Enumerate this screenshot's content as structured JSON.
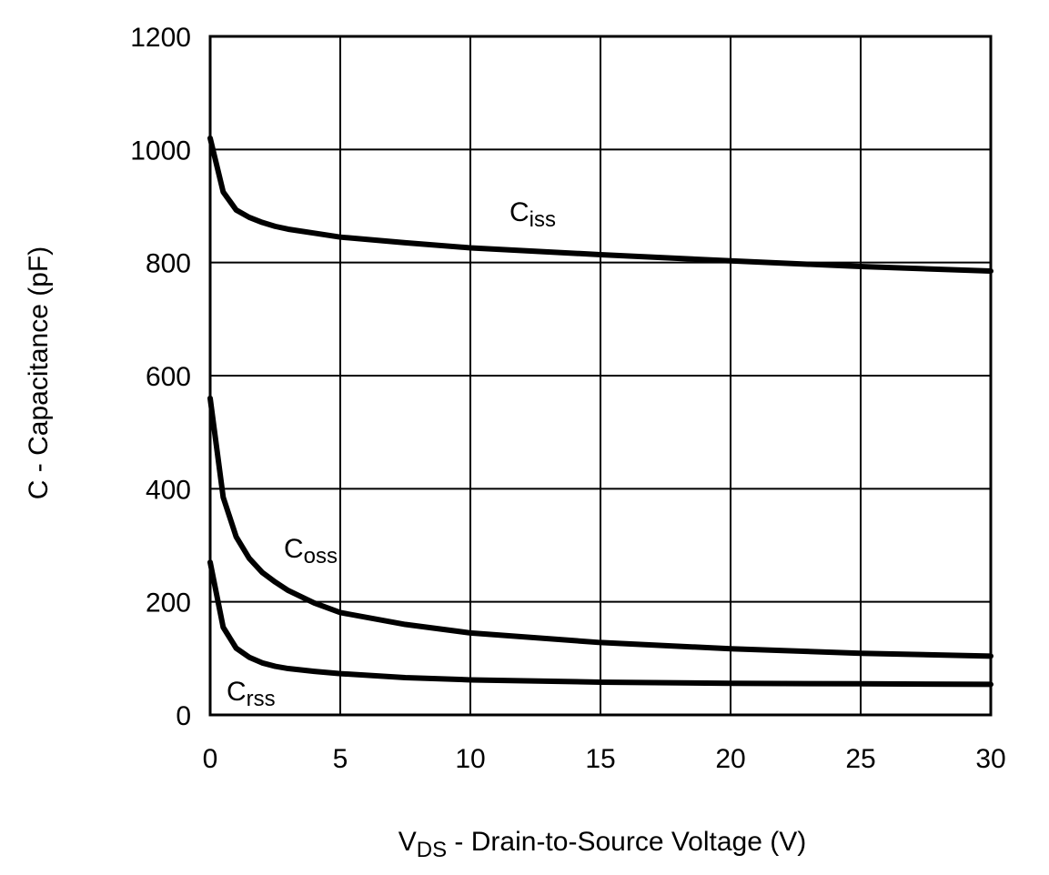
{
  "chart_data": {
    "type": "line",
    "title": "",
    "xlabel_main": "V",
    "xlabel_sub": "DS",
    "xlabel_rest": " - Drain-to-Source Voltage (V)",
    "ylabel": "C - Capacitance (pF)",
    "xlim": [
      0,
      30
    ],
    "ylim": [
      0,
      1200
    ],
    "xticks": [
      "0",
      "5",
      "10",
      "15",
      "20",
      "25",
      "30"
    ],
    "yticks": [
      "0",
      "200",
      "400",
      "600",
      "800",
      "1000",
      "1200"
    ],
    "grid": true,
    "legend": "none",
    "series": [
      {
        "name_main": "C",
        "name_sub": "iss",
        "x": [
          0,
          0.5,
          1,
          1.5,
          2,
          2.5,
          3,
          4,
          5,
          7.5,
          10,
          15,
          20,
          25,
          30
        ],
        "values": [
          1020,
          925,
          893,
          880,
          871,
          864,
          859,
          852,
          845,
          835,
          826,
          814,
          803,
          793,
          785
        ]
      },
      {
        "name_main": "C",
        "name_sub": "oss",
        "x": [
          0,
          0.5,
          1,
          1.5,
          2,
          2.5,
          3,
          4,
          5,
          7.5,
          10,
          15,
          20,
          25,
          30
        ],
        "values": [
          560,
          385,
          315,
          277,
          252,
          235,
          220,
          198,
          181,
          160,
          145,
          128,
          117,
          109,
          104
        ]
      },
      {
        "name_main": "C",
        "name_sub": "rss",
        "x": [
          0,
          0.5,
          1,
          1.5,
          2,
          2.5,
          3,
          4,
          5,
          7.5,
          10,
          15,
          20,
          25,
          30
        ],
        "values": [
          270,
          155,
          118,
          102,
          92,
          86,
          82,
          77,
          73,
          66,
          62,
          58,
          56,
          55,
          54
        ]
      }
    ]
  }
}
